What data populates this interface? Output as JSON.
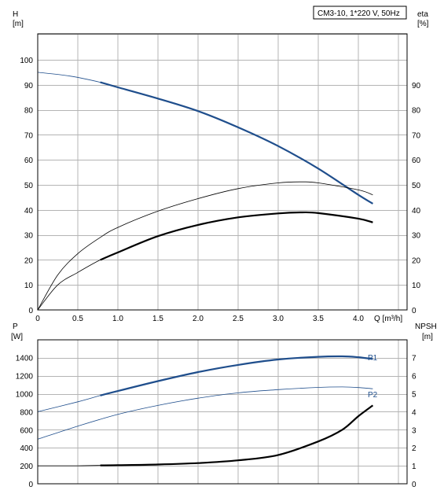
{
  "chart_data": [
    {
      "type": "line",
      "title": "CM3-10, 1*220 V, 50Hz",
      "xlabel": "Q [m³/h]",
      "ylabel_left": "H\n[m]",
      "ylabel_right": "eta\n[%]",
      "xlim": [
        0,
        4.5
      ],
      "ylim_left": [
        0,
        100
      ],
      "ylim_right": [
        0,
        100
      ],
      "x_ticks": [
        "0",
        "0.5",
        "1.0",
        "1.5",
        "2.0",
        "2.5",
        "3.0",
        "3.5",
        "4.0"
      ],
      "y_ticks_left": [
        "0",
        "10",
        "20",
        "30",
        "40",
        "50",
        "60",
        "70",
        "80",
        "90",
        "100"
      ],
      "y_ticks_right": [
        "0",
        "10",
        "20",
        "30",
        "40",
        "50",
        "60",
        "70",
        "80",
        "90"
      ],
      "grid": true,
      "series": [
        {
          "name": "",
          "axis": "left",
          "color": "#1f4e8c",
          "x": [
            0,
            0.4,
            0.78,
            1.0,
            1.5,
            2.0,
            2.5,
            3.0,
            3.5,
            4.0,
            4.18
          ],
          "y": [
            95,
            93.5,
            91,
            89,
            84.5,
            79.5,
            73,
            65.5,
            56.5,
            46,
            42.5
          ],
          "thick_from": 0.78
        },
        {
          "name": "",
          "axis": "right",
          "color": "#000000",
          "x": [
            0,
            0.25,
            0.5,
            0.78,
            1.0,
            1.5,
            2.0,
            2.5,
            3.0,
            3.3,
            3.5,
            4.0,
            4.18
          ],
          "y": [
            0,
            14,
            22.5,
            29,
            33,
            39.5,
            44.5,
            48.5,
            50.8,
            51.2,
            50.8,
            48,
            46
          ],
          "thick_from": null
        },
        {
          "name": "",
          "axis": "right",
          "color": "#000000",
          "x": [
            0,
            0.25,
            0.5,
            0.78,
            1.0,
            1.5,
            2.0,
            2.5,
            3.0,
            3.3,
            3.5,
            4.0,
            4.18
          ],
          "y": [
            0,
            10,
            15,
            20,
            23,
            29.5,
            34,
            37,
            38.6,
            39,
            38.7,
            36.5,
            35
          ],
          "thick_from": 0.78
        }
      ]
    },
    {
      "type": "line",
      "xlabel": "",
      "ylabel_left": "P\n[W]",
      "ylabel_right": "NPSH\n[m]",
      "xlim": [
        0,
        4.5
      ],
      "ylim_left": [
        0,
        1600
      ],
      "ylim_right": [
        0,
        8
      ],
      "y_ticks_left": [
        "0",
        "200",
        "400",
        "600",
        "800",
        "1000",
        "1200",
        "1400"
      ],
      "y_ticks_right": [
        "0",
        "1",
        "2",
        "3",
        "4",
        "5",
        "6",
        "7"
      ],
      "grid": true,
      "series": [
        {
          "name": "P1",
          "axis": "left",
          "color": "#1f4e8c",
          "x": [
            0,
            0.5,
            0.78,
            1.0,
            1.5,
            2.0,
            2.5,
            3.0,
            3.5,
            3.8,
            4.0,
            4.18
          ],
          "y": [
            800,
            910,
            980,
            1030,
            1140,
            1240,
            1320,
            1380,
            1410,
            1415,
            1405,
            1385
          ],
          "thick_from": 0.78
        },
        {
          "name": "P2",
          "axis": "left",
          "color": "#1f4e8c",
          "x": [
            0,
            0.5,
            1.0,
            1.5,
            2.0,
            2.5,
            3.0,
            3.5,
            3.8,
            4.0,
            4.18
          ],
          "y": [
            495,
            640,
            770,
            870,
            950,
            1010,
            1045,
            1070,
            1075,
            1068,
            1055
          ],
          "thick_from": null
        },
        {
          "name": "",
          "axis": "right",
          "color": "#000000",
          "x": [
            0,
            0.5,
            0.78,
            1.0,
            1.5,
            2.0,
            2.5,
            3.0,
            3.5,
            3.8,
            4.0,
            4.18
          ],
          "y": [
            1.0,
            1.0,
            1.02,
            1.03,
            1.07,
            1.15,
            1.3,
            1.6,
            2.35,
            3.0,
            3.75,
            4.35
          ],
          "thick_from": 0.78
        }
      ]
    }
  ]
}
